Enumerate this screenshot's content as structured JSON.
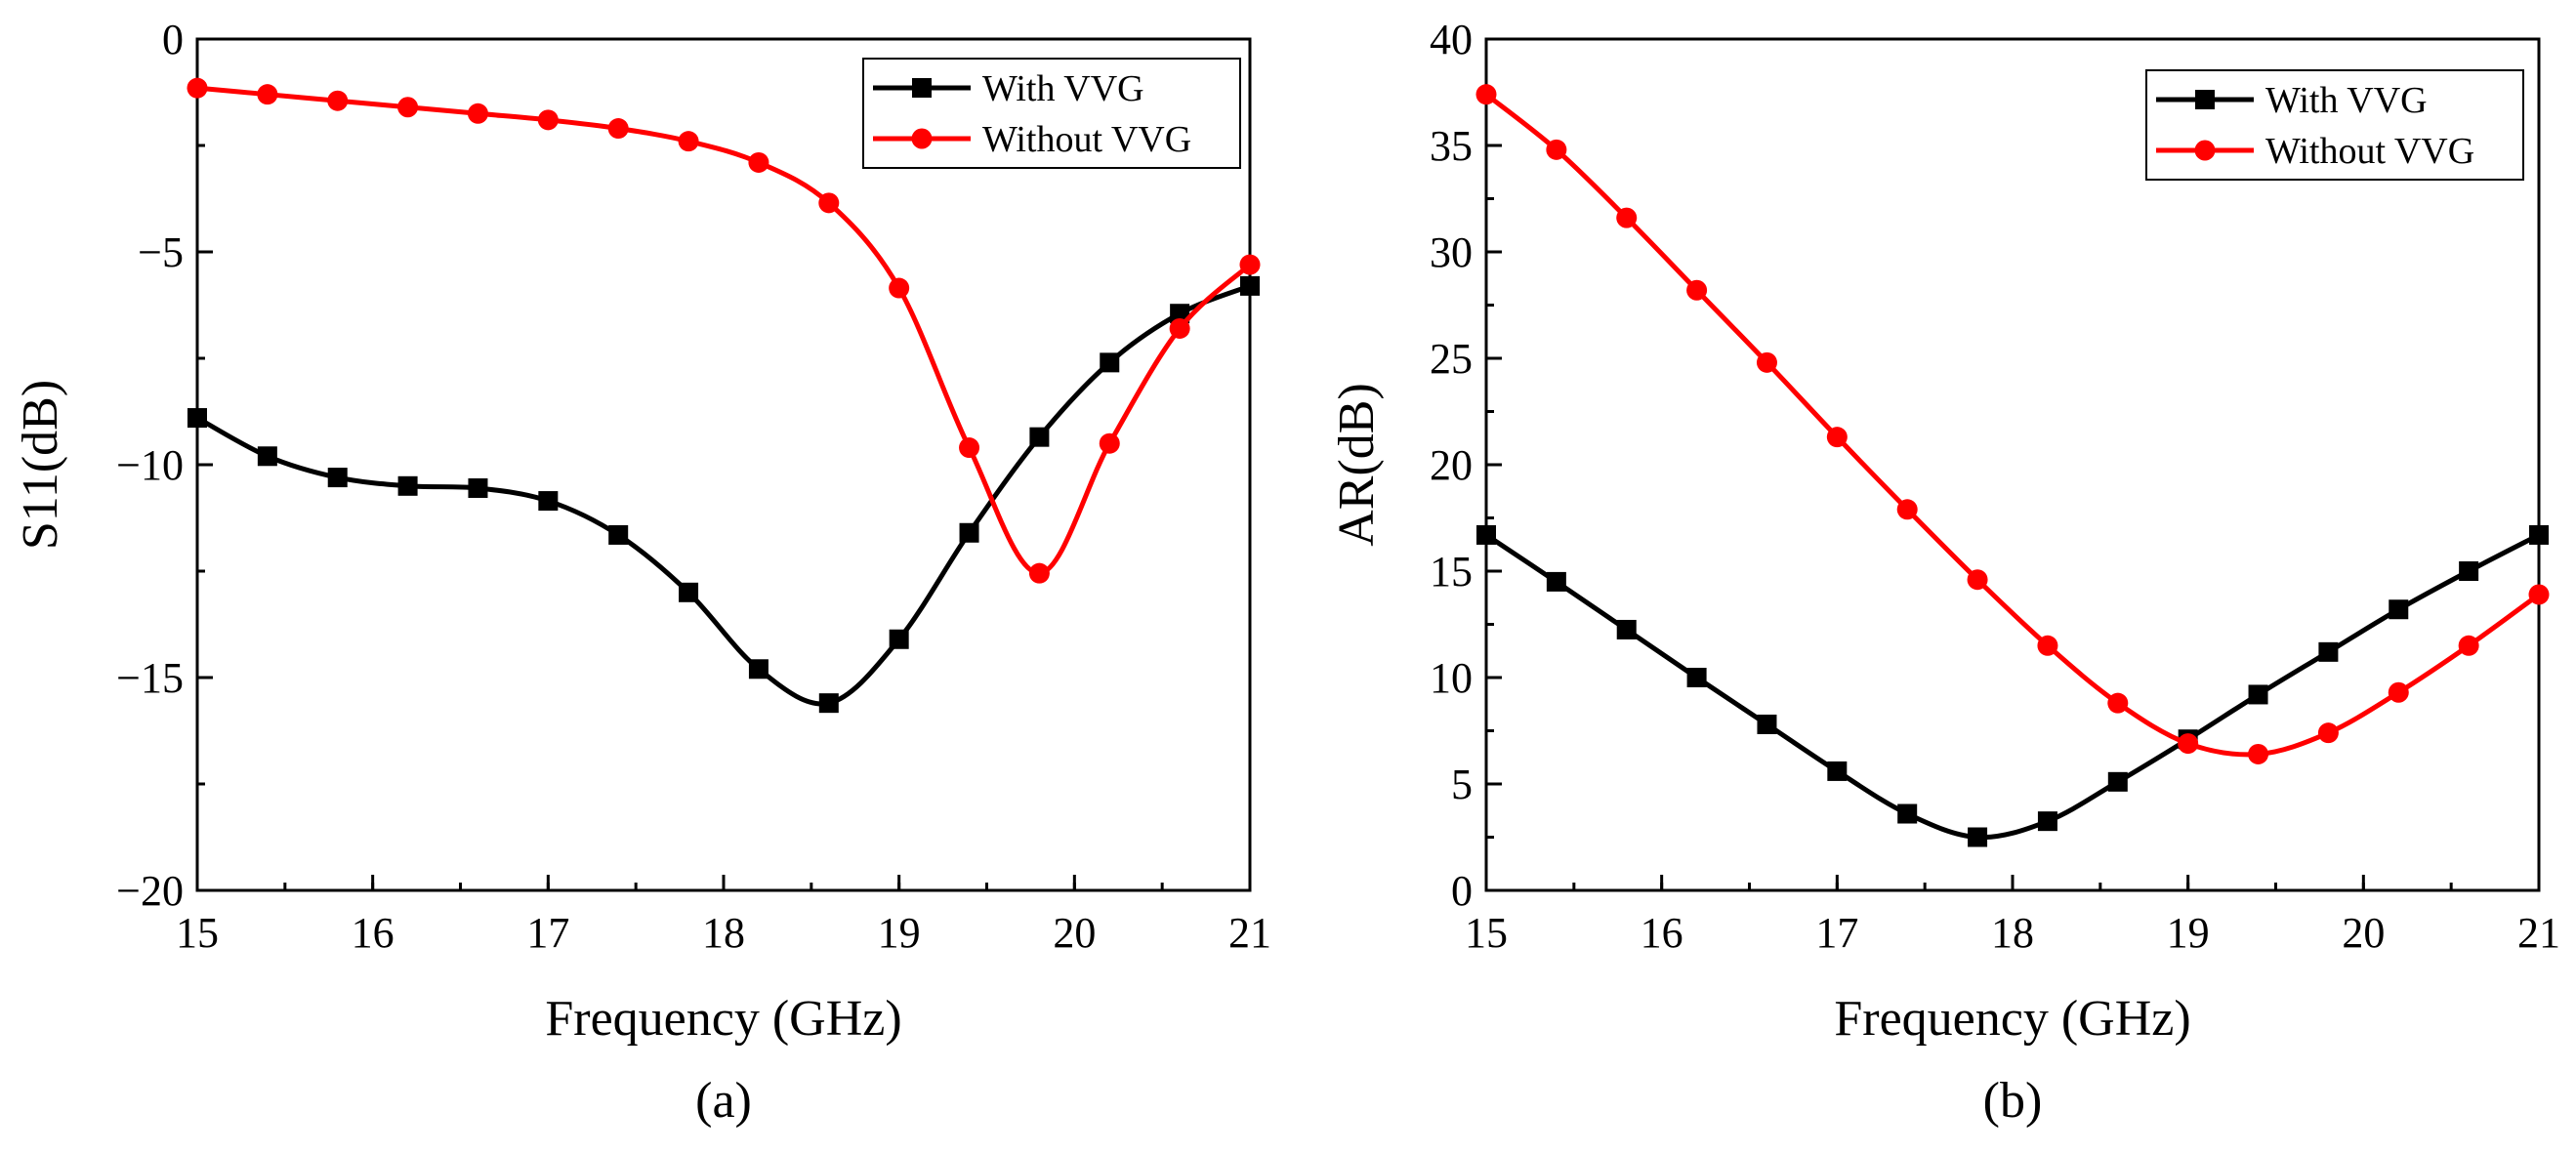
{
  "figure": {
    "legend_labels": [
      "With VVG",
      "Without VVG"
    ],
    "colors": {
      "with": "#000000",
      "without": "#ff0000"
    }
  },
  "chart_data": [
    {
      "id": "a",
      "type": "line",
      "panel_label": "(a)",
      "title": "",
      "xlabel": "Frequency (GHz)",
      "ylabel": "S11(dB)",
      "xlim": [
        15,
        21
      ],
      "ylim": [
        -20,
        0
      ],
      "xticks": [
        15,
        16,
        17,
        18,
        19,
        20,
        21
      ],
      "yticks": [
        -20,
        -15,
        -10,
        -5,
        0
      ],
      "ytick_labels": [
        "−20",
        "−15",
        "−10",
        "−5",
        "0"
      ],
      "minor_y_step": 2.5,
      "legend_position": "top-right",
      "series": [
        {
          "name": "With VVG",
          "marker": "square",
          "color": "#000000",
          "x": [
            15,
            15.4,
            15.8,
            16.2,
            16.6,
            17.0,
            17.4,
            17.8,
            18.2,
            18.6,
            19.0,
            19.4,
            19.8,
            20.2,
            20.6,
            21.0
          ],
          "y": [
            -8.9,
            -9.8,
            -10.3,
            -10.5,
            -10.55,
            -10.85,
            -11.65,
            -13.0,
            -14.8,
            -15.6,
            -14.1,
            -11.6,
            -9.35,
            -7.6,
            -6.45,
            -5.8
          ]
        },
        {
          "name": "Without VVG",
          "marker": "circle",
          "color": "#ff0000",
          "x": [
            15,
            15.4,
            15.8,
            16.2,
            16.6,
            17.0,
            17.4,
            17.8,
            18.2,
            18.6,
            19.0,
            19.4,
            19.8,
            20.2,
            20.6,
            21.0
          ],
          "y": [
            -1.15,
            -1.3,
            -1.45,
            -1.6,
            -1.75,
            -1.9,
            -2.1,
            -2.4,
            -2.9,
            -3.85,
            -5.85,
            -9.6,
            -12.55,
            -9.5,
            -6.8,
            -5.3
          ]
        }
      ]
    },
    {
      "id": "b",
      "type": "line",
      "panel_label": "(b)",
      "title": "",
      "xlabel": "Frequency (GHz)",
      "ylabel": "AR(dB)",
      "xlim": [
        15,
        21
      ],
      "ylim": [
        0,
        40
      ],
      "xticks": [
        15,
        16,
        17,
        18,
        19,
        20,
        21
      ],
      "yticks": [
        0,
        5,
        10,
        15,
        20,
        25,
        30,
        35,
        40
      ],
      "ytick_labels": [
        "0",
        "5",
        "10",
        "15",
        "20",
        "25",
        "30",
        "35",
        "40"
      ],
      "minor_y_step": 2.5,
      "legend_position": "top-right",
      "series": [
        {
          "name": "With VVG",
          "marker": "square",
          "color": "#000000",
          "x": [
            15,
            15.4,
            15.8,
            16.2,
            16.6,
            17.0,
            17.4,
            17.8,
            18.2,
            18.6,
            19.0,
            19.4,
            19.8,
            20.2,
            20.6,
            21.0
          ],
          "y": [
            16.7,
            14.5,
            12.25,
            10.0,
            7.8,
            5.6,
            3.6,
            2.5,
            3.25,
            5.1,
            7.1,
            9.2,
            11.2,
            13.2,
            15.0,
            16.7
          ]
        },
        {
          "name": "Without VVG",
          "marker": "circle",
          "color": "#ff0000",
          "x": [
            15,
            15.4,
            15.8,
            16.2,
            16.6,
            17.0,
            17.4,
            17.8,
            18.2,
            18.6,
            19.0,
            19.4,
            19.8,
            20.2,
            20.6,
            21.0
          ],
          "y": [
            37.4,
            34.8,
            31.6,
            28.2,
            24.8,
            21.3,
            17.9,
            14.6,
            11.5,
            8.8,
            6.9,
            6.4,
            7.4,
            9.3,
            11.5,
            13.9
          ]
        }
      ]
    }
  ]
}
